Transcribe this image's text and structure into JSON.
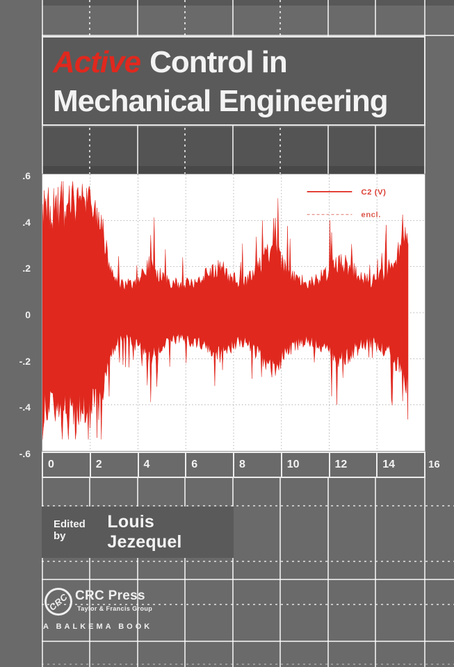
{
  "book_cover": {
    "title": {
      "highlight": "Active",
      "line1_rest": "Control in",
      "line2": "Mechanical Engineering"
    },
    "editor": {
      "prefix": "Edited by",
      "name": "Louis Jezequel"
    },
    "publisher": {
      "monogram": "CRC",
      "name": "CRC Press",
      "group": "Taylor & Francis Group",
      "imprint": "A BALKEMA BOOK"
    },
    "colors": {
      "accent_red": "#e0281e",
      "cover_gray": "#6a6a6a",
      "title_panel_gray": "#5a5a5a",
      "plot_background": "#ffffff"
    }
  },
  "chart_data": {
    "type": "area",
    "description": "Oscilloscope-style red voltage signal trace, dense noise with decaying then fluctuating envelope, abrupt cutoff near x=15.3",
    "title": "",
    "xlabel": "",
    "ylabel": "",
    "xlim": [
      0,
      16
    ],
    "ylim": [
      -0.6,
      0.6
    ],
    "grid": true,
    "legend_position": "top-right",
    "legend": [
      {
        "label": "C2 (V)",
        "line_style": "solid",
        "color": "#e0281e"
      },
      {
        "label": "encl.",
        "line_style": "dashed",
        "color": "#e89a92"
      }
    ],
    "x_tick_labels": [
      "0",
      "2",
      "4",
      "6",
      "8",
      "10",
      "12",
      "14",
      "16"
    ],
    "y_tick_labels": [
      ".6",
      ".4",
      ".2",
      "0",
      "-.2",
      "-.4",
      "-.6"
    ],
    "y_tick_values": [
      0.6,
      0.4,
      0.2,
      0,
      -0.2,
      -0.4,
      -0.6
    ],
    "series_color": "#e0281e",
    "signal_end_x": 15.3,
    "amplitude_envelope": [
      [
        0,
        0.44
      ],
      [
        0.4,
        0.45
      ],
      [
        0.8,
        0.44
      ],
      [
        1.2,
        0.45
      ],
      [
        1.6,
        0.46
      ],
      [
        2.0,
        0.44
      ],
      [
        2.3,
        0.43
      ],
      [
        2.5,
        0.37
      ],
      [
        2.7,
        0.26
      ],
      [
        2.9,
        0.17
      ],
      [
        3.1,
        0.135
      ],
      [
        3.5,
        0.12
      ],
      [
        3.9,
        0.13
      ],
      [
        4.2,
        0.17
      ],
      [
        4.5,
        0.21
      ],
      [
        4.8,
        0.17
      ],
      [
        5.2,
        0.135
      ],
      [
        5.7,
        0.12
      ],
      [
        6.2,
        0.13
      ],
      [
        6.7,
        0.15
      ],
      [
        7.1,
        0.18
      ],
      [
        7.4,
        0.2
      ],
      [
        7.8,
        0.16
      ],
      [
        8.2,
        0.135
      ],
      [
        8.6,
        0.14
      ],
      [
        9.0,
        0.18
      ],
      [
        9.3,
        0.24
      ],
      [
        9.6,
        0.27
      ],
      [
        10.0,
        0.22
      ],
      [
        10.4,
        0.16
      ],
      [
        10.8,
        0.135
      ],
      [
        11.2,
        0.13
      ],
      [
        11.6,
        0.15
      ],
      [
        12.0,
        0.18
      ],
      [
        12.4,
        0.21
      ],
      [
        12.7,
        0.21
      ],
      [
        13.0,
        0.18
      ],
      [
        13.4,
        0.145
      ],
      [
        13.8,
        0.135
      ],
      [
        14.2,
        0.16
      ],
      [
        14.6,
        0.2
      ],
      [
        14.9,
        0.25
      ],
      [
        15.1,
        0.3
      ],
      [
        15.3,
        0.31
      ]
    ]
  }
}
